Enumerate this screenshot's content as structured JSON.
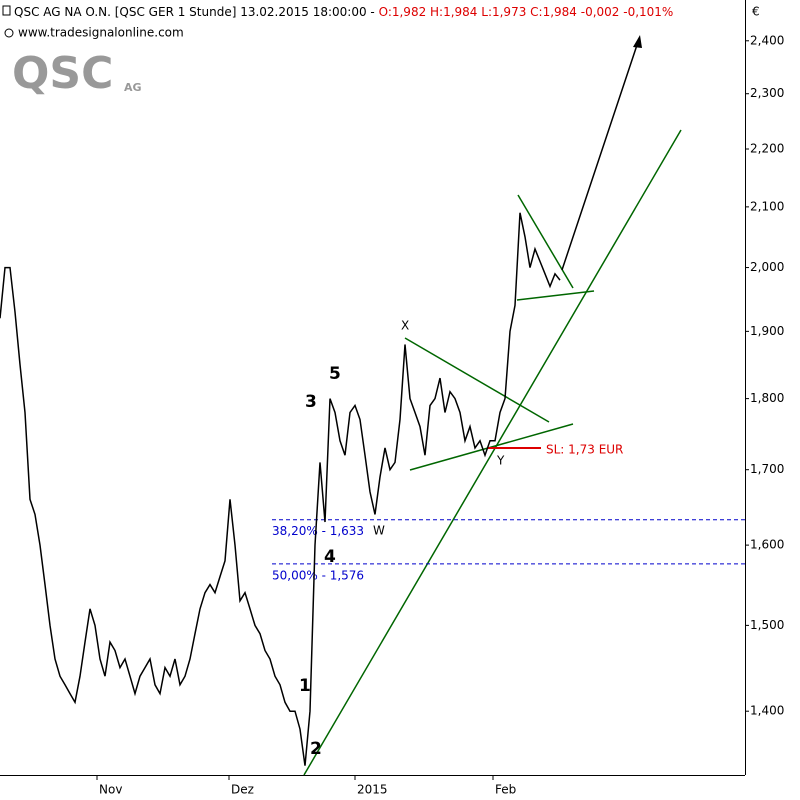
{
  "chart_data": {
    "type": "line",
    "title": "QSC AG NA O.N. [QSC GER  1 Stunde] 13.02.2015 18:00:00 - ",
    "quote": "O:1,982 H:1,984 L:1,973 C:1,984 -0,002 -0,101%",
    "source": "www.tradesignalonline.com",
    "logo": "QSC",
    "logo_suffix": "AG",
    "currency": "€",
    "log_scale": true,
    "series": [
      {
        "name": "QSC AG NA O.N.",
        "color": "#000000",
        "x": [
          0,
          5,
          10,
          15,
          20,
          25,
          30,
          35,
          40,
          45,
          50,
          55,
          60,
          65,
          70,
          75,
          80,
          85,
          90,
          95,
          100,
          105,
          110,
          115,
          120,
          125,
          130,
          135,
          140,
          145,
          150,
          155,
          160,
          165,
          170,
          175,
          180,
          185,
          190,
          195,
          200,
          205,
          210,
          215,
          220,
          225,
          230,
          235,
          240,
          245,
          250,
          255,
          260,
          265,
          270,
          275,
          280,
          285,
          290,
          295,
          300,
          305,
          310,
          315,
          320,
          325,
          330,
          335,
          340,
          345,
          350,
          355,
          360,
          365,
          370,
          375,
          380,
          385,
          390,
          395,
          400,
          405,
          410,
          415,
          420,
          425,
          430,
          435,
          440,
          445,
          450,
          455,
          460,
          465,
          470,
          475,
          480,
          485,
          490,
          495,
          500,
          505,
          510,
          515,
          520,
          525,
          530,
          535,
          540,
          545,
          550,
          555,
          560
        ],
        "values": [
          1.92,
          2.0,
          2.0,
          1.93,
          1.85,
          1.78,
          1.66,
          1.64,
          1.6,
          1.55,
          1.5,
          1.46,
          1.44,
          1.43,
          1.42,
          1.41,
          1.44,
          1.48,
          1.52,
          1.5,
          1.46,
          1.44,
          1.48,
          1.47,
          1.45,
          1.46,
          1.44,
          1.42,
          1.44,
          1.45,
          1.46,
          1.43,
          1.42,
          1.45,
          1.44,
          1.46,
          1.43,
          1.44,
          1.46,
          1.49,
          1.52,
          1.54,
          1.55,
          1.54,
          1.56,
          1.58,
          1.66,
          1.6,
          1.53,
          1.54,
          1.52,
          1.5,
          1.49,
          1.47,
          1.46,
          1.44,
          1.43,
          1.41,
          1.4,
          1.4,
          1.38,
          1.34,
          1.4,
          1.6,
          1.71,
          1.63,
          1.8,
          1.78,
          1.74,
          1.72,
          1.78,
          1.79,
          1.77,
          1.72,
          1.67,
          1.64,
          1.69,
          1.73,
          1.7,
          1.71,
          1.77,
          1.88,
          1.8,
          1.78,
          1.76,
          1.72,
          1.79,
          1.8,
          1.83,
          1.78,
          1.81,
          1.8,
          1.78,
          1.74,
          1.76,
          1.73,
          1.74,
          1.72,
          1.74,
          1.74,
          1.78,
          1.8,
          1.9,
          1.94,
          2.09,
          2.05,
          2.0,
          2.03,
          2.01,
          1.99,
          1.97,
          1.99,
          1.98
        ]
      }
    ],
    "xlim": [
      0,
      745
    ],
    "xticks": [
      {
        "value": 97,
        "label": "Nov"
      },
      {
        "value": 229,
        "label": "Dez"
      },
      {
        "value": 355,
        "label": "2015"
      },
      {
        "value": 493,
        "label": "Feb"
      }
    ],
    "ylim": [
      1.33,
      2.48
    ],
    "yticks": [
      {
        "value": 1.4,
        "label": "1,400"
      },
      {
        "value": 1.5,
        "label": "1,500"
      },
      {
        "value": 1.6,
        "label": "1,600"
      },
      {
        "value": 1.7,
        "label": "1,700"
      },
      {
        "value": 1.8,
        "label": "1,800"
      },
      {
        "value": 1.9,
        "label": "1,900"
      },
      {
        "value": 2.0,
        "label": "2,000"
      },
      {
        "value": 2.1,
        "label": "2,100"
      },
      {
        "value": 2.2,
        "label": "2,200"
      },
      {
        "value": 2.3,
        "label": "2,300"
      },
      {
        "value": 2.4,
        "label": "2,400"
      }
    ],
    "levels": [
      {
        "value": 1.633,
        "label": "38,20% - 1,633",
        "color": "#0000cc"
      },
      {
        "value": 1.576,
        "label": "50,00% - 1,576",
        "color": "#0000cc"
      },
      {
        "value": 1.73,
        "label": "SL: 1,73 EUR",
        "color": "#dd0000"
      }
    ],
    "annotations": [
      "1",
      "2",
      "3",
      "4",
      "5",
      "X",
      "Y",
      "W"
    ]
  }
}
